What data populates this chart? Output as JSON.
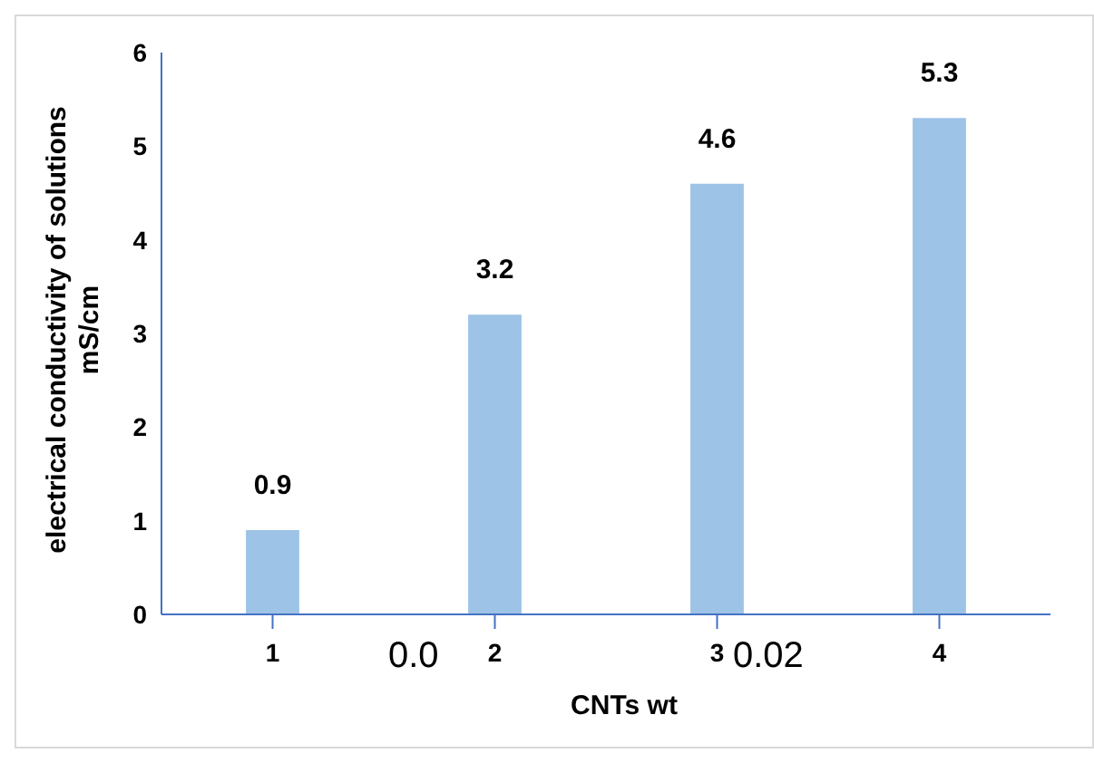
{
  "chart_data": {
    "type": "bar",
    "xlabel": "CNTs wt",
    "ylabel": "electrical conductivity of solutions mS/cm",
    "categories": [
      "1",
      "2",
      "3",
      "4"
    ],
    "values": [
      0.9,
      3.2,
      4.6,
      5.3
    ],
    "color": "#9dc3e6",
    "ylim": [
      0,
      6
    ],
    "yticks": [
      0,
      1,
      2,
      3,
      4,
      5,
      6
    ],
    "grid": false,
    "data_labels": true,
    "annotations": [
      "0.0",
      "0.02"
    ]
  }
}
